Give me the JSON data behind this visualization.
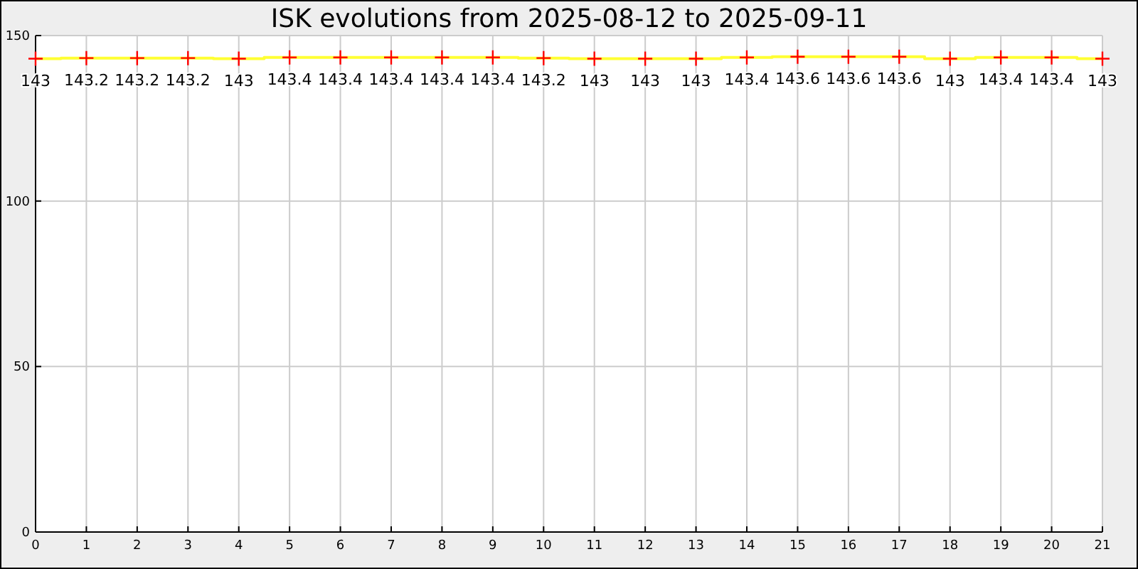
{
  "chart_data": {
    "type": "step",
    "title": "ISK evolutions from 2025-08-12 to 2025-09-11",
    "x": [
      0,
      1,
      2,
      3,
      4,
      5,
      6,
      7,
      8,
      9,
      10,
      11,
      12,
      13,
      14,
      15,
      16,
      17,
      18,
      19,
      20,
      21
    ],
    "series": [
      {
        "color": "#ffff33",
        "values": [
          143,
          143.2,
          143.2,
          143.2,
          143,
          143.4,
          143.4,
          143.4,
          143.4,
          143.4,
          143.2,
          143,
          143,
          143,
          143.4,
          143.6,
          143.6,
          143.6,
          143,
          143.4,
          143.4,
          143
        ]
      },
      {
        "type": "scatter",
        "color": "#ff0000",
        "marker": "cross",
        "values": [
          143,
          143.2,
          143.2,
          143.2,
          143,
          143.4,
          143.4,
          143.4,
          143.4,
          143.4,
          143.2,
          143,
          143,
          143,
          143.4,
          143.6,
          143.6,
          143.6,
          143,
          143.4,
          143.4,
          143
        ],
        "value_labels": [
          "143",
          "143.2",
          "143.2",
          "143.2",
          "143",
          "143.4",
          "143.4",
          "143.4",
          "143.4",
          "143.4",
          "143.2",
          "143",
          "143",
          "143",
          "143.4",
          "143.6",
          "143.6",
          "143.6",
          "143",
          "143.4",
          "143.4",
          "143"
        ]
      }
    ],
    "grid": true,
    "xlim": [
      0,
      21
    ],
    "xticks": [
      0,
      1,
      2,
      3,
      4,
      5,
      6,
      7,
      8,
      9,
      10,
      11,
      12,
      13,
      14,
      15,
      16,
      17,
      18,
      19,
      20,
      21
    ],
    "ylim": [
      0,
      150
    ],
    "yticks": [
      0,
      50,
      100,
      150
    ]
  }
}
